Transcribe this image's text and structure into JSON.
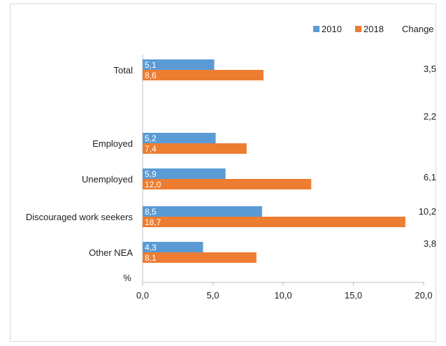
{
  "chart_data": {
    "type": "bar",
    "orientation": "horizontal",
    "categories": [
      "Total",
      "Employed",
      "Unemployed",
      "Discouraged work seekers",
      "Other NEA"
    ],
    "series": [
      {
        "name": "2010",
        "values": [
          5.1,
          5.2,
          5.9,
          8.5,
          4.3
        ],
        "labels": [
          "5,1",
          "5,2",
          "5,9",
          "8,5",
          "4,3"
        ],
        "color": "#5b9bd5"
      },
      {
        "name": "2018",
        "values": [
          8.6,
          7.4,
          12.0,
          18.7,
          8.1
        ],
        "labels": [
          "8,6",
          "7,4",
          "12,0",
          "18,7",
          "8,1"
        ],
        "color": "#ed7d31"
      }
    ],
    "change": {
      "header": "Change",
      "values": [
        "3,5",
        "2,2",
        "6,1",
        "10,2",
        "3,8"
      ]
    },
    "xlim": [
      0,
      20
    ],
    "xticks": [
      "0,0",
      "5,0",
      "10,0",
      "15,0",
      "20,0"
    ],
    "unit_label": "%",
    "legend_position": "top-right",
    "grid": false
  }
}
